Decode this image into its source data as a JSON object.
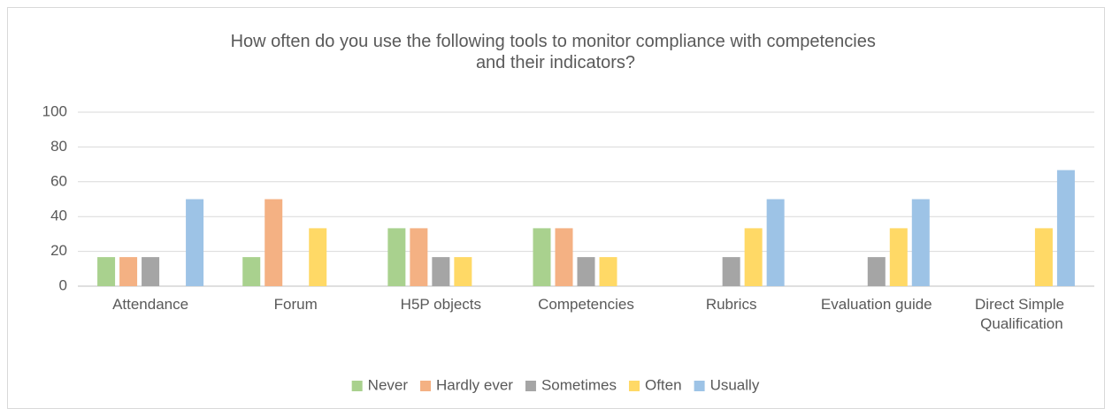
{
  "chart_data": {
    "type": "bar",
    "title": "How often do you use the following tools to monitor compliance with competencies and their indicators?",
    "categories": [
      "Attendance",
      "Forum",
      "H5P objects",
      "Competencies",
      "Rubrics",
      "Evaluation guide",
      "Direct Simple Qualification"
    ],
    "series": [
      {
        "name": "Never",
        "color": "#a9d18e",
        "values": [
          16.7,
          16.7,
          33.3,
          33.3,
          0,
          0,
          0
        ]
      },
      {
        "name": "Hardly ever",
        "color": "#f4b183",
        "values": [
          16.7,
          50,
          33.3,
          33.3,
          0,
          0,
          0
        ]
      },
      {
        "name": "Sometimes",
        "color": "#a5a5a5",
        "values": [
          16.7,
          0,
          16.7,
          16.7,
          16.7,
          16.7,
          0
        ]
      },
      {
        "name": "Often",
        "color": "#ffd966",
        "values": [
          0,
          33.3,
          16.7,
          16.7,
          33.3,
          33.3,
          33.3
        ]
      },
      {
        "name": "Usually",
        "color": "#9dc3e6",
        "values": [
          50,
          0,
          0,
          0,
          50,
          50,
          66.7
        ]
      }
    ],
    "ylim": [
      0,
      100
    ],
    "yticks": [
      0,
      20,
      40,
      60,
      80,
      100
    ],
    "grid": true,
    "legend": "bottom"
  }
}
